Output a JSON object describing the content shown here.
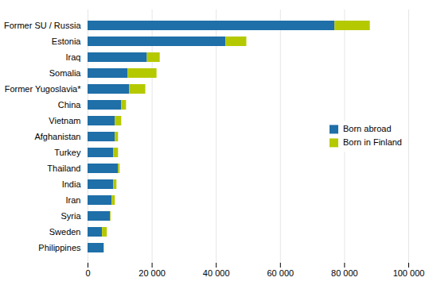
{
  "chart_data": {
    "type": "bar",
    "orientation": "horizontal",
    "stacked": true,
    "categories": [
      "Former SU / Russia",
      "Estonia",
      "Iraq",
      "Somalia",
      "Former Yugoslavia*",
      "China",
      "Vietnam",
      "Afghanistan",
      "Turkey",
      "Thailand",
      "India",
      "Iran",
      "Syria",
      "Sweden",
      "Philippines"
    ],
    "series": [
      {
        "name": "Born abroad",
        "color": "#1f6fa8",
        "values": [
          77000,
          43000,
          18500,
          12500,
          13000,
          10500,
          8500,
          8500,
          8000,
          9500,
          8000,
          7500,
          7000,
          4500,
          5000
        ]
      },
      {
        "name": "Born in Finland",
        "color": "#b5c900",
        "values": [
          11000,
          6500,
          4000,
          9000,
          5000,
          1500,
          2000,
          1000,
          1500,
          500,
          1000,
          1000,
          200,
          1500,
          100
        ]
      }
    ],
    "xlim": [
      0,
      100000
    ],
    "xticks": [
      0,
      {
        "value": 20000,
        "label": "20 000"
      },
      {
        "value": 40000,
        "label": "40 000"
      },
      {
        "value": 60000,
        "label": "60 000"
      },
      {
        "value": 80000,
        "label": "80 000"
      },
      {
        "value": 100000,
        "label": "100 000"
      }
    ],
    "grid": true,
    "legend": "center right"
  }
}
